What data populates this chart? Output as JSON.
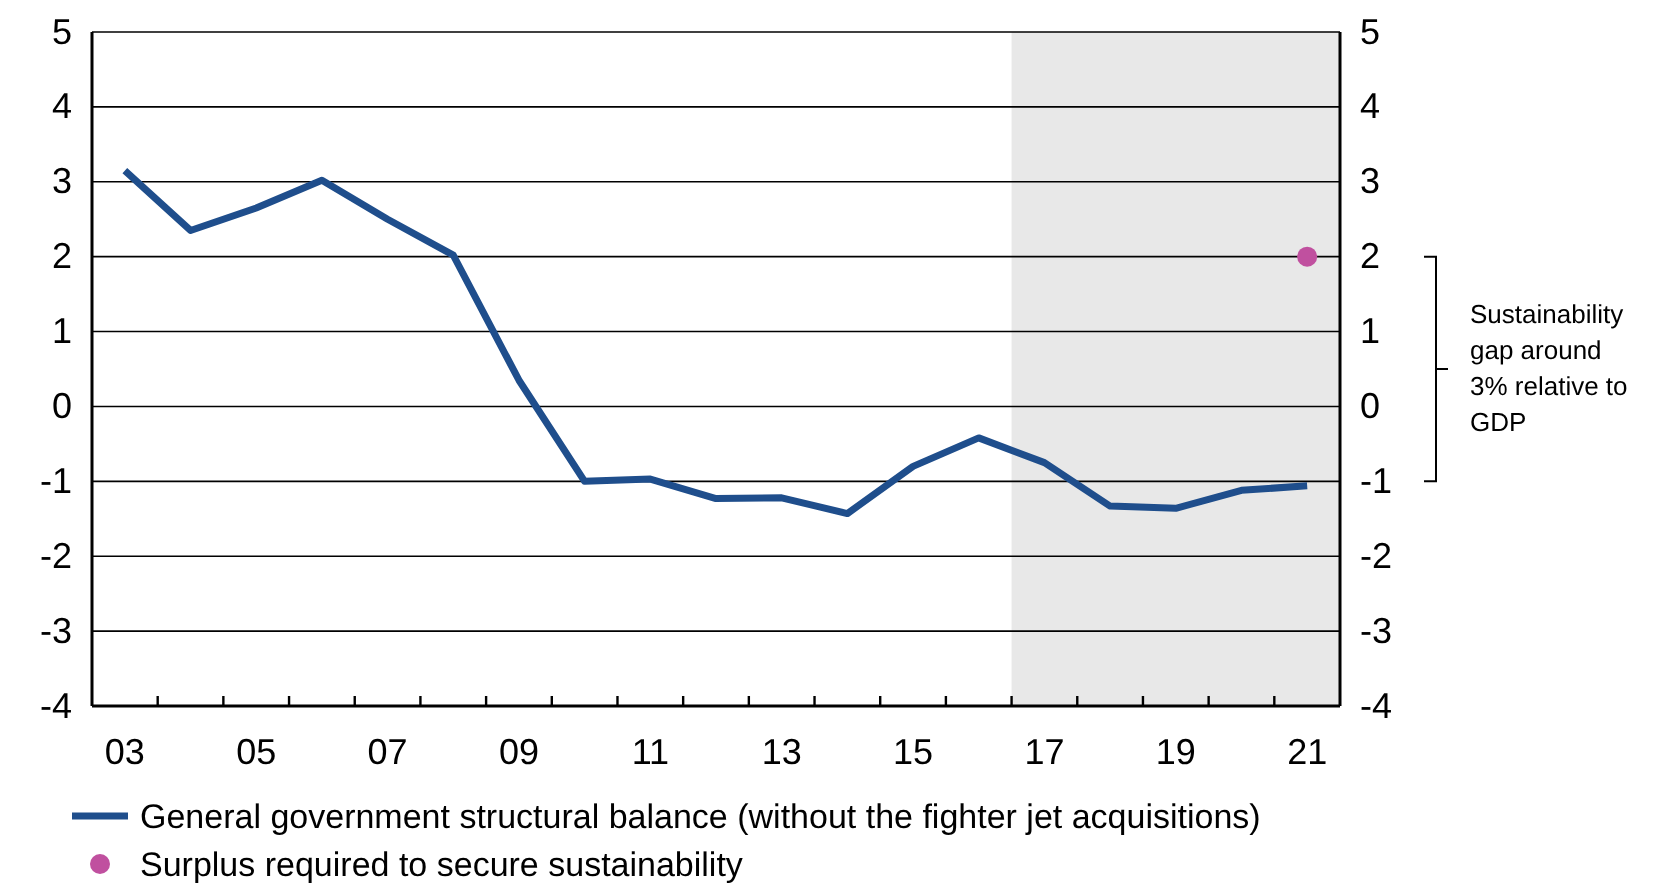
{
  "chart_data": {
    "type": "line",
    "categories": [
      "03",
      null,
      "05",
      null,
      "07",
      null,
      "09",
      null,
      "11",
      null,
      "13",
      null,
      "15",
      null,
      "17",
      null,
      "19",
      null,
      "21"
    ],
    "series": [
      {
        "name": "General government structural balance (without the fighter jet acquisitions)",
        "color": "#1f4e8c",
        "marker": "none",
        "values": [
          3.15,
          2.35,
          2.65,
          3.02,
          2.5,
          2.02,
          0.35,
          -1.0,
          -0.97,
          -1.23,
          -1.22,
          -1.43,
          -0.8,
          -0.42,
          -0.75,
          -1.33,
          -1.36,
          -1.12,
          -1.06
        ]
      },
      {
        "name": "Surplus required to secure sustainability",
        "type": "scatter",
        "marker": "circle",
        "color": "#c0509f",
        "x": [
          "21"
        ],
        "values": [
          2.0
        ]
      }
    ],
    "ylim": [
      -4,
      5
    ],
    "yticks": [
      -4,
      -3,
      -2,
      -1,
      0,
      1,
      2,
      3,
      4,
      5
    ],
    "y2lim": [
      -4,
      5
    ],
    "y2ticks": [
      -4,
      -3,
      -2,
      -1,
      0,
      1,
      2,
      3,
      4,
      5
    ],
    "bands": [
      {
        "axis": "x",
        "from": "17",
        "to": "21",
        "color": "#e8e8e8"
      }
    ],
    "annotations": [
      "Sustainability gap around 3% relative to GDP"
    ],
    "grid": "y",
    "legend": "bottom",
    "line_style": "solid"
  }
}
